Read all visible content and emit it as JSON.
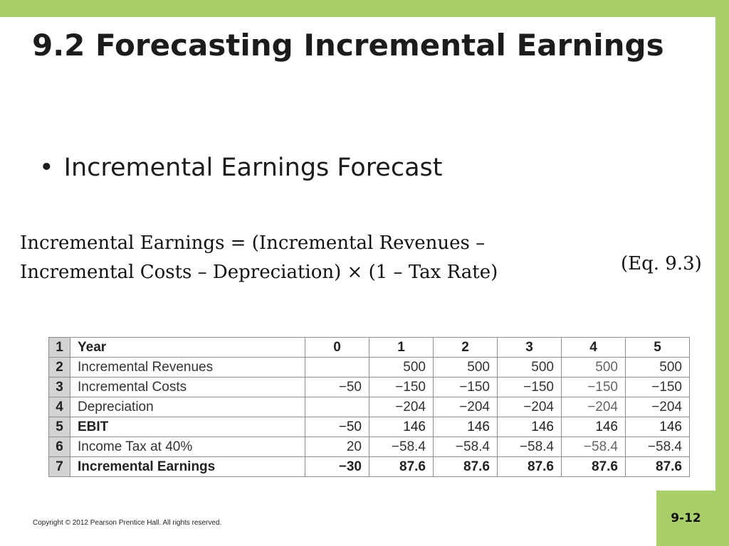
{
  "slide": {
    "title": "9.2 Forecasting Incremental Earnings",
    "bullet": "Incremental Earnings Forecast",
    "bullet_symbol": "•",
    "equation_line1": "Incremental Earnings = (Incremental Revenues –",
    "equation_line2": "Incremental Costs – Depreciation) × (1 – Tax Rate)",
    "equation_ref": "(Eq. 9.3)",
    "copyright": "Copyright © 2012 Pearson Prentice Hall. All rights reserved.",
    "page_number": "9-12",
    "accent_color": "#a9cf6b"
  },
  "table": {
    "header": {
      "row_num": "1",
      "label": "Year",
      "years": [
        "0",
        "1",
        "2",
        "3",
        "4",
        "5"
      ]
    },
    "rows": [
      {
        "row_num": "2",
        "label": "Incremental Revenues",
        "values": [
          "",
          "500",
          "500",
          "500",
          "500",
          "500"
        ]
      },
      {
        "row_num": "3",
        "label": "Incremental Costs",
        "values": [
          "−50",
          "−150",
          "−150",
          "−150",
          "−150",
          "−150"
        ]
      },
      {
        "row_num": "4",
        "label": "Depreciation",
        "values": [
          "",
          "−204",
          "−204",
          "−204",
          "−204",
          "−204"
        ]
      },
      {
        "row_num": "5",
        "label": "EBIT",
        "values": [
          "−50",
          "146",
          "146",
          "146",
          "146",
          "146"
        ]
      },
      {
        "row_num": "6",
        "label": "Income Tax at 40%",
        "values": [
          "20",
          "−58.4",
          "−58.4",
          "−58.4",
          "−58.4",
          "−58.4"
        ]
      },
      {
        "row_num": "7",
        "label": "Incremental Earnings",
        "values": [
          "−30",
          "87.6",
          "87.6",
          "87.6",
          "87.6",
          "87.6"
        ]
      }
    ]
  }
}
